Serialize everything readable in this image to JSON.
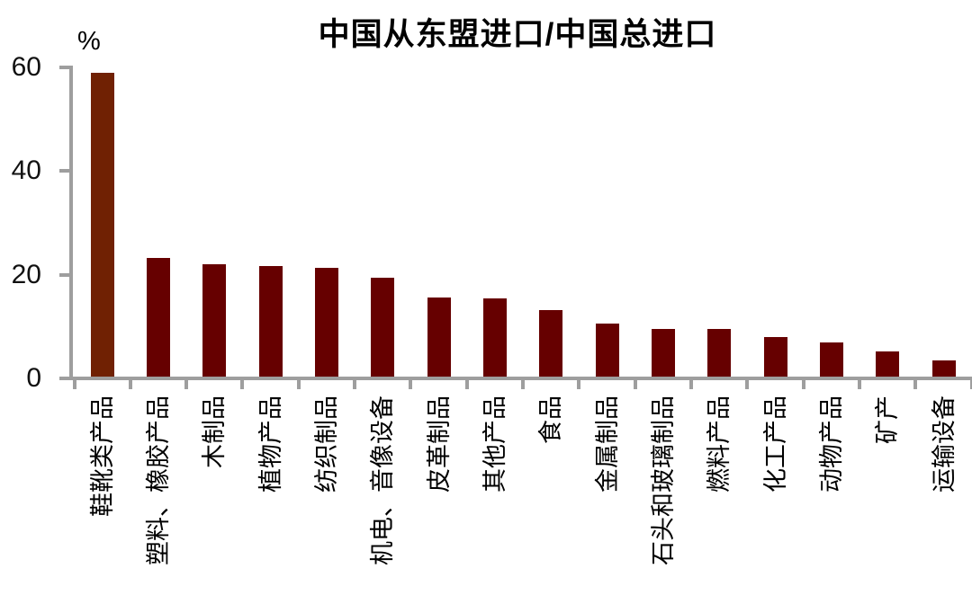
{
  "chart_data": {
    "type": "bar",
    "title": "中国从东盟进口/中国总进口",
    "unit_label": "%",
    "xlabel": "",
    "ylabel": "%",
    "ylim": [
      0,
      60
    ],
    "yticks": [
      0,
      20,
      40,
      60
    ],
    "grid": false,
    "legend": null,
    "highlight_index": 0,
    "categories": [
      "鞋靴类产品",
      "塑料、橡胶产品",
      "木制品",
      "植物产品",
      "纺织制品",
      "机电、音像设备",
      "皮革制品",
      "其他产品",
      "食品",
      "金属制品",
      "石头和玻璃制品",
      "燃料产品",
      "化工产品",
      "动物产品",
      "矿产",
      "运输设备"
    ],
    "values": [
      58.6,
      22.8,
      21.6,
      21.3,
      21.0,
      19.0,
      15.3,
      15.0,
      12.9,
      10.2,
      9.2,
      9.1,
      7.7,
      6.5,
      4.9,
      3.2
    ],
    "colors": {
      "bar": "#660000",
      "bar_highlight": "#702103",
      "axis": "#9e9e9e",
      "text": "#000000",
      "background": "#ffffff"
    }
  }
}
